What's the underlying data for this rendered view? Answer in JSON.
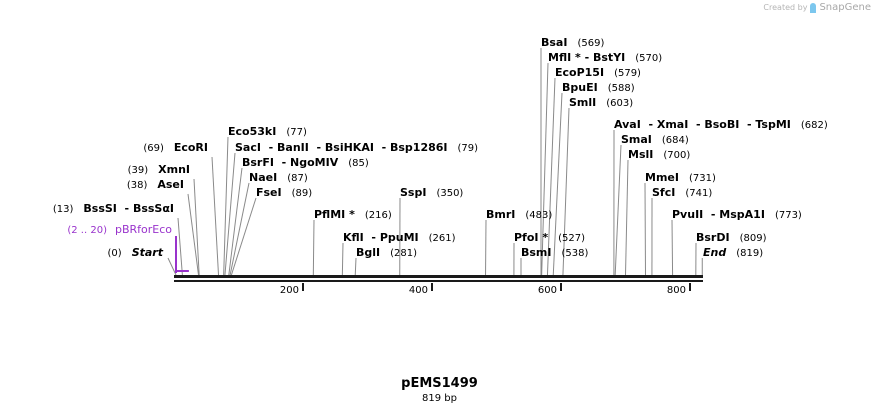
{
  "credit": {
    "prefix": "Created by",
    "brand": "SnapGene"
  },
  "title": "pEMS1499",
  "subtitle": "819 bp",
  "sequence_length": 819,
  "colors": {
    "backbone": "#1a1a1a",
    "site_line": "#8a8a8a",
    "feature": "#9933cc",
    "text": "#000000"
  },
  "axis": {
    "ticks": [
      {
        "label": "200",
        "bp": 200
      },
      {
        "label": "400",
        "bp": 400
      },
      {
        "label": "600",
        "bp": 600
      },
      {
        "label": "800",
        "bp": 800
      }
    ]
  },
  "feature": {
    "label": "pBRforEco",
    "range": "(2 .. 20)",
    "start": 2,
    "end": 20
  },
  "markers": [
    {
      "name": "Start",
      "pos": "(0)",
      "bp": 0
    },
    {
      "name": "End",
      "pos": "(819)",
      "bp": 819
    }
  ],
  "sites": [
    {
      "names": "BssSI  - BssSαI",
      "pos": "(13)",
      "bp": 13
    },
    {
      "names": "AseI",
      "pos": "(38)",
      "bp": 38
    },
    {
      "names": "XmnI",
      "pos": "(39)",
      "bp": 39
    },
    {
      "names": "EcoRI",
      "pos": "(69)",
      "bp": 69
    },
    {
      "names": "Eco53kI",
      "pos": "(77)",
      "bp": 77
    },
    {
      "names": "SacI  - BanII  - BsiHKAI  - Bsp1286I",
      "pos": "(79)",
      "bp": 79
    },
    {
      "names": "BsrFI  - NgoMIV",
      "pos": "(85)",
      "bp": 85
    },
    {
      "names": "NaeI",
      "pos": "(87)",
      "bp": 87
    },
    {
      "names": "FseI",
      "pos": "(89)",
      "bp": 89
    },
    {
      "names": "PflMI *",
      "pos": "(216)",
      "bp": 216
    },
    {
      "names": "KflI  - PpuMI",
      "pos": "(261)",
      "bp": 261
    },
    {
      "names": "BglI",
      "pos": "(281)",
      "bp": 281
    },
    {
      "names": "SspI",
      "pos": "(350)",
      "bp": 350
    },
    {
      "names": "BmrI",
      "pos": "(483)",
      "bp": 483
    },
    {
      "names": "PfoI *",
      "pos": "(527)",
      "bp": 527
    },
    {
      "names": "BsmI",
      "pos": "(538)",
      "bp": 538
    },
    {
      "names": "BsaI",
      "pos": "(569)",
      "bp": 569
    },
    {
      "names": "MflI * - BstYI",
      "pos": "(570)",
      "bp": 570
    },
    {
      "names": "EcoP15I",
      "pos": "(579)",
      "bp": 579
    },
    {
      "names": "BpuEI",
      "pos": "(588)",
      "bp": 588
    },
    {
      "names": "SmlI",
      "pos": "(603)",
      "bp": 603
    },
    {
      "names": "AvaI  - XmaI  - BsoBI  - TspMI",
      "pos": "(682)",
      "bp": 682
    },
    {
      "names": "SmaI",
      "pos": "(684)",
      "bp": 684
    },
    {
      "names": "MslI",
      "pos": "(700)",
      "bp": 700
    },
    {
      "names": "MmeI",
      "pos": "(731)",
      "bp": 731
    },
    {
      "names": "SfcI",
      "pos": "(741)",
      "bp": 741
    },
    {
      "names": "PvuII  - MspA1I",
      "pos": "(773)",
      "bp": 773
    },
    {
      "names": "BsrDI",
      "pos": "(809)",
      "bp": 809
    }
  ]
}
